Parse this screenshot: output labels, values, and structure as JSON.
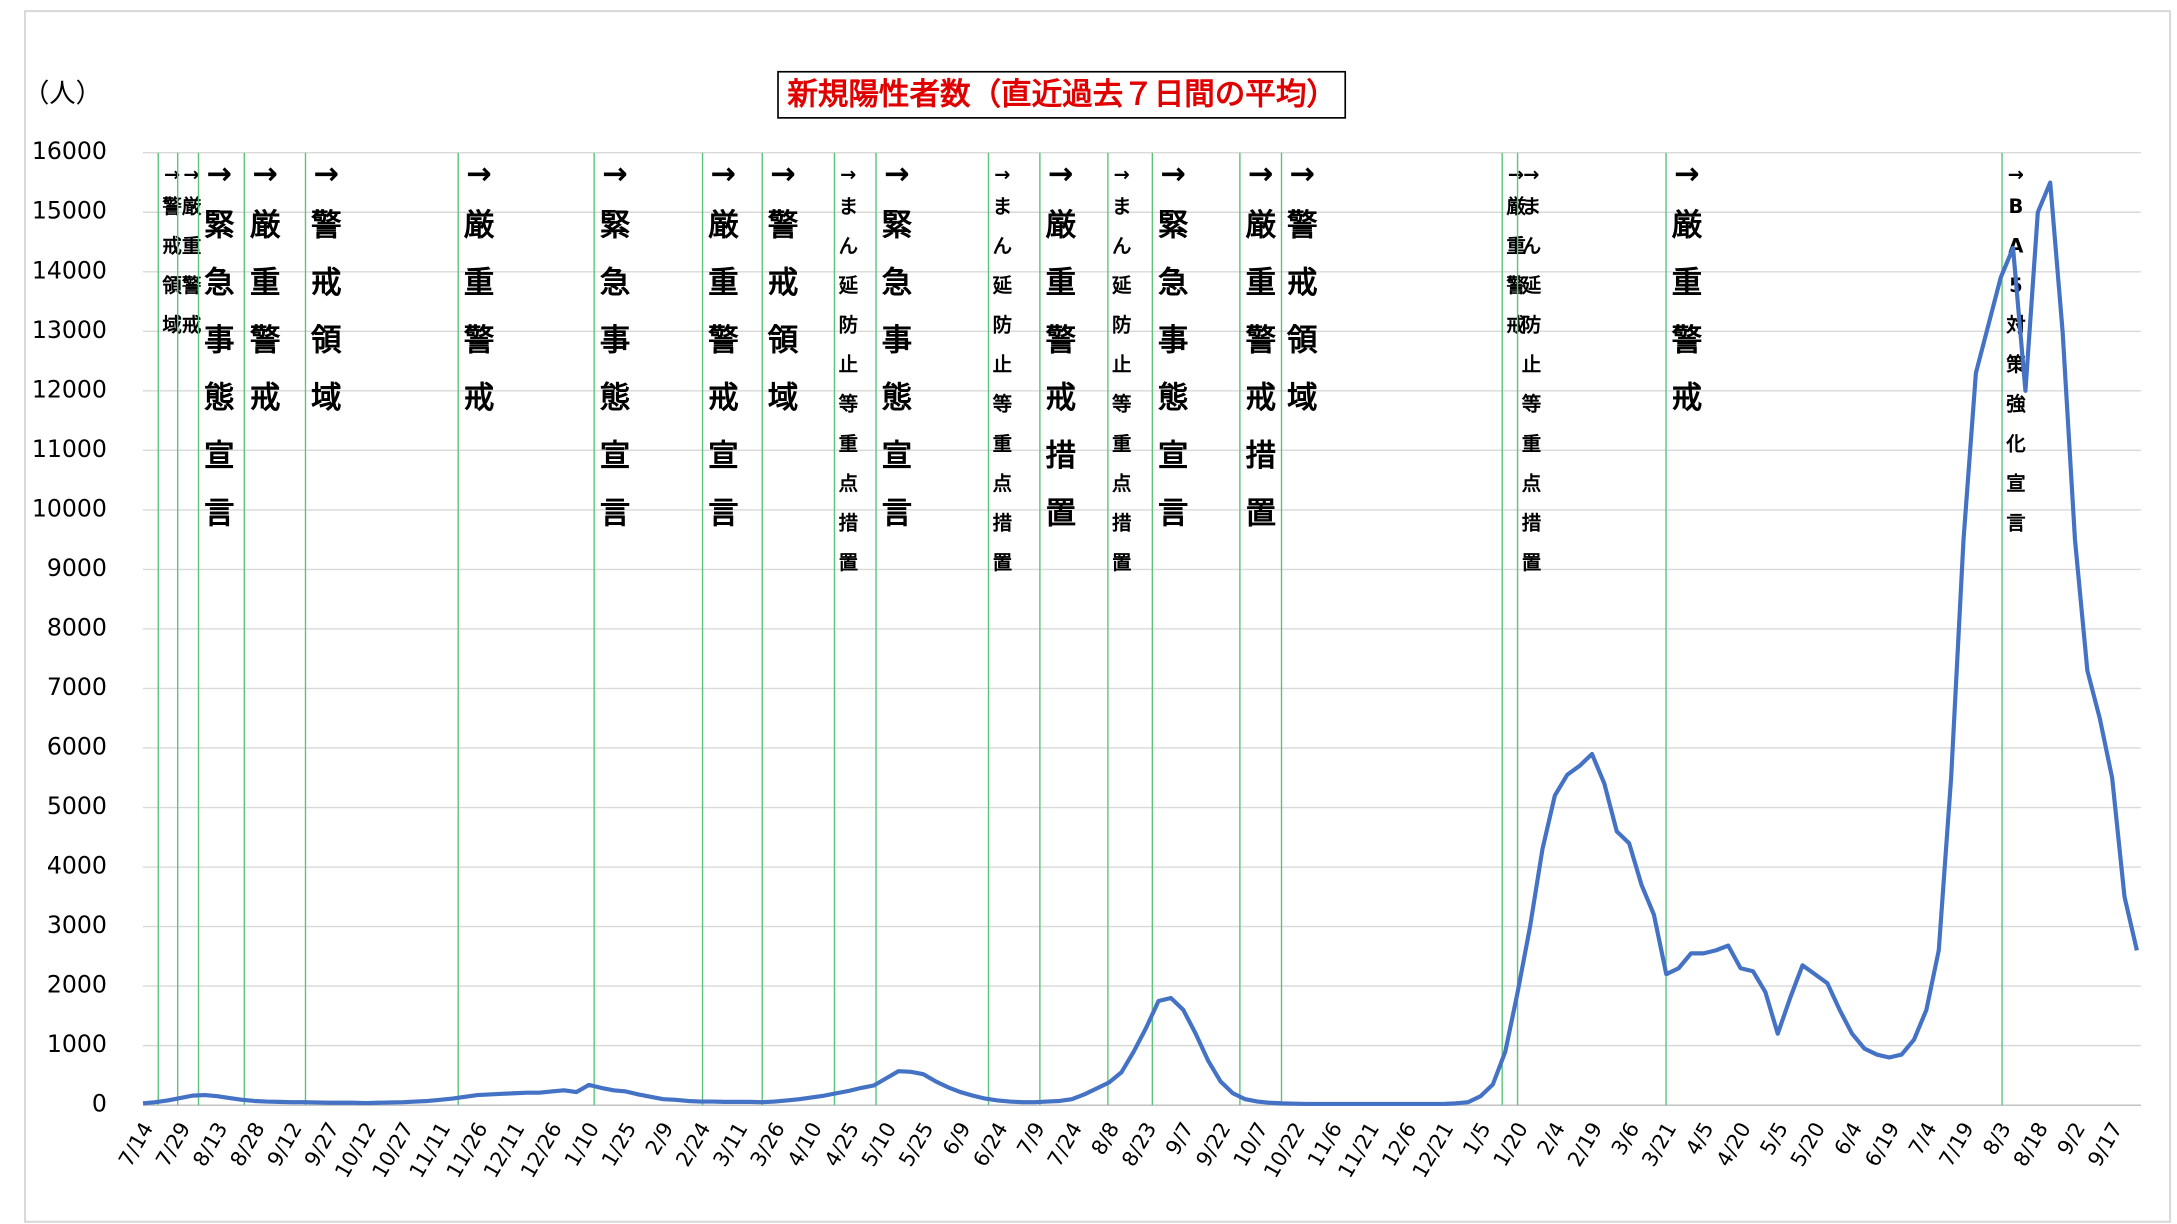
{
  "chart_data": {
    "type": "line",
    "title": "新規陽性者数（直近過去７日間の平均）",
    "y_unit": "（人）",
    "categories": [
      "7/14",
      null,
      null,
      "7/29",
      null,
      null,
      "8/13",
      null,
      null,
      "8/28",
      null,
      null,
      "9/12",
      null,
      null,
      "9/27",
      null,
      null,
      "10/12",
      null,
      null,
      "10/27",
      null,
      null,
      "11/11",
      null,
      null,
      "11/26",
      null,
      null,
      "12/11",
      null,
      null,
      "12/26",
      null,
      null,
      "1/10",
      null,
      null,
      "1/25",
      null,
      null,
      "2/9",
      null,
      null,
      "2/24",
      null,
      null,
      "3/11",
      null,
      null,
      "3/26",
      null,
      null,
      "4/10",
      null,
      null,
      "4/25",
      null,
      null,
      "5/10",
      null,
      null,
      "5/25",
      null,
      null,
      "6/9",
      null,
      null,
      "6/24",
      null,
      null,
      "7/9",
      null,
      null,
      "7/24",
      null,
      null,
      "8/8",
      null,
      null,
      "8/23",
      null,
      null,
      "9/7",
      null,
      null,
      "9/22",
      null,
      null,
      "10/7",
      null,
      null,
      "10/22",
      null,
      null,
      "11/6",
      null,
      null,
      "11/21",
      null,
      null,
      "12/6",
      null,
      null,
      "12/21",
      null,
      null,
      "1/5",
      null,
      null,
      "1/20",
      null,
      null,
      "2/4",
      null,
      null,
      "2/19",
      null,
      null,
      "3/6",
      null,
      null,
      "3/21",
      null,
      null,
      "4/5",
      null,
      null,
      "4/20",
      null,
      null,
      "5/5",
      null,
      null,
      "5/20",
      null,
      null,
      "6/4",
      null,
      null,
      "6/19",
      null,
      null,
      "7/4",
      null,
      null,
      "7/19",
      null,
      null,
      "8/3",
      null,
      null,
      "8/18",
      null,
      null,
      "9/2",
      null,
      null,
      "9/17",
      null,
      null
    ],
    "values": [
      30,
      50,
      80,
      120,
      160,
      170,
      150,
      120,
      90,
      70,
      60,
      55,
      50,
      50,
      45,
      40,
      40,
      40,
      35,
      40,
      45,
      50,
      60,
      70,
      90,
      110,
      140,
      170,
      180,
      190,
      200,
      210,
      210,
      230,
      250,
      220,
      340,
      290,
      250,
      230,
      180,
      140,
      100,
      90,
      70,
      60,
      60,
      55,
      55,
      55,
      50,
      60,
      80,
      100,
      130,
      160,
      200,
      240,
      290,
      330,
      450,
      570,
      560,
      520,
      400,
      300,
      220,
      160,
      110,
      80,
      60,
      50,
      50,
      60,
      70,
      100,
      180,
      280,
      380,
      550,
      900,
      1300,
      1750,
      1800,
      1600,
      1200,
      750,
      400,
      200,
      100,
      60,
      40,
      30,
      25,
      20,
      20,
      20,
      20,
      20,
      20,
      20,
      20,
      20,
      20,
      20,
      20,
      30,
      50,
      150,
      350,
      900,
      1900,
      3000,
      4300,
      5200,
      5550,
      5700,
      5900,
      5400,
      4600,
      4400,
      3700,
      3200,
      2200,
      2300,
      2550,
      2550,
      2600,
      2680,
      2300,
      2250,
      1900,
      1200,
      1800,
      2350,
      2200,
      2050,
      1600,
      1200,
      950,
      850,
      800,
      850,
      1100,
      1600,
      2600,
      5500,
      9500,
      12300,
      13100,
      13900,
      14400,
      12000,
      15000,
      15500,
      13000,
      9500,
      7300,
      6500,
      5500,
      3500,
      2600
    ],
    "color": "#4472c4",
    "ylim": [
      0,
      16000
    ],
    "yticks": [
      0,
      1000,
      2000,
      3000,
      4000,
      5000,
      6000,
      7000,
      8000,
      9000,
      10000,
      11000,
      12000,
      13000,
      14000,
      15000,
      16000
    ],
    "grid": true,
    "event_line_color": "#5cc47a",
    "annotations": [
      {
        "x": 1.23,
        "text": "→警戒領域",
        "size": "small"
      },
      {
        "x": 2.8,
        "text": "→厳重警戒",
        "size": "small"
      },
      {
        "x": 4.48,
        "text": "→緊急事態宣言",
        "size": "large"
      },
      {
        "x": 8.18,
        "text": "→厳重警戒",
        "size": "large"
      },
      {
        "x": 13.12,
        "text": "→警戒領域",
        "size": "large"
      },
      {
        "x": 25.45,
        "text": "→厳重警戒",
        "size": "large"
      },
      {
        "x": 36.43,
        "text": "→緊急事態宣言",
        "size": "large"
      },
      {
        "x": 45.18,
        "text": "→厳重警戒宣言",
        "size": "large"
      },
      {
        "x": 50.0,
        "text": "→警戒領域",
        "size": "large"
      },
      {
        "x": 55.83,
        "text": "→まん延防止等重点措置",
        "size": "small"
      },
      {
        "x": 59.19,
        "text": "→緊急事態宣言",
        "size": "large"
      },
      {
        "x": 68.27,
        "text": "→まん延防止等重点措置",
        "size": "small"
      },
      {
        "x": 72.42,
        "text": "→厳重警戒措置",
        "size": "large"
      },
      {
        "x": 77.91,
        "text": "→まん延防止等重点措置",
        "size": "small"
      },
      {
        "x": 81.5,
        "text": "→緊急事態宣言",
        "size": "large"
      },
      {
        "x": 88.57,
        "text": "→厳重警戒措置",
        "size": "large"
      },
      {
        "x": 91.93,
        "text": "→警戒領域",
        "size": "large"
      },
      {
        "x": 109.75,
        "text": "→厳重警戒",
        "size": "small"
      },
      {
        "x": 110.99,
        "text": "→まん延防止等重点措置",
        "size": "small"
      },
      {
        "x": 122.98,
        "text": "→厳重警戒",
        "size": "large"
      },
      {
        "x": 150.11,
        "text": "→BA5対策強化宣言",
        "size": "small"
      }
    ]
  }
}
